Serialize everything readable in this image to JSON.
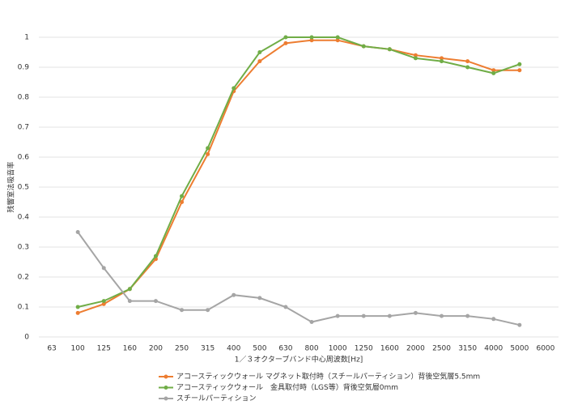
{
  "chart_data": {
    "type": "line",
    "x_label": "1／３オクターブバンド中心周波数[Hz]",
    "y_label": "残響室法吸音率",
    "categories": [
      "63",
      "100",
      "125",
      "160",
      "200",
      "250",
      "315",
      "400",
      "500",
      "630",
      "800",
      "1000",
      "1250",
      "1600",
      "2000",
      "2500",
      "3150",
      "4000",
      "5000",
      "6000"
    ],
    "series": [
      {
        "name": "アコースティックウォール マグネット取付時（スチールパーティション）背後空気層5.5mm",
        "color": "#ed7d31",
        "values": [
          null,
          0.08,
          0.11,
          0.16,
          0.26,
          0.45,
          0.61,
          0.82,
          0.92,
          0.98,
          0.99,
          0.99,
          0.97,
          0.96,
          0.94,
          0.93,
          0.92,
          0.89,
          0.89,
          null
        ]
      },
      {
        "name": "アコースティックウォール　金具取付時（LGS等）背後空気層0mm",
        "color": "#70ad47",
        "values": [
          null,
          0.1,
          0.12,
          0.16,
          0.27,
          0.47,
          0.63,
          0.83,
          0.95,
          1.0,
          1.0,
          1.0,
          0.97,
          0.96,
          0.93,
          0.92,
          0.9,
          0.88,
          0.91,
          null
        ]
      },
      {
        "name": "スチールパーティション",
        "color": "#a5a5a5",
        "values": [
          null,
          0.35,
          0.23,
          0.12,
          0.12,
          0.09,
          0.09,
          0.14,
          0.13,
          0.1,
          0.05,
          0.07,
          0.07,
          0.07,
          0.08,
          0.07,
          0.07,
          0.06,
          0.04,
          null
        ]
      }
    ],
    "ylim": [
      0,
      1
    ],
    "yticks": [
      0,
      0.1,
      0.2,
      0.3,
      0.4,
      0.5,
      0.6,
      0.7,
      0.8,
      0.9,
      1
    ],
    "grid": true,
    "legend": "bottom"
  }
}
